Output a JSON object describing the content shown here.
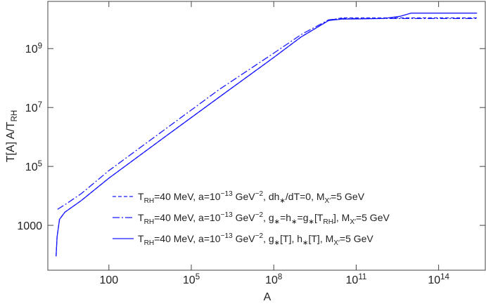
{
  "chart_data": {
    "type": "line",
    "xlabel": "A",
    "ylabel": "T[A] A/T_{RH}",
    "xscale": "log",
    "yscale": "log",
    "xlim": [
      0.6,
      5000000000000000.0
    ],
    "ylim": [
      30,
      40000000000.0
    ],
    "xticks": [
      100,
      {
        "value": 100000,
        "label": "10^{5}"
      },
      {
        "value": 100000000,
        "label": "10^{8}"
      },
      {
        "value": 100000000000,
        "label": "10^{11}"
      },
      {
        "value": 100000000000000,
        "label": "10^{14}"
      }
    ],
    "yticks": [
      1000,
      {
        "value": 100000,
        "label": "10^{5}"
      },
      {
        "value": 10000000,
        "label": "10^{7}"
      },
      {
        "value": 1000000000,
        "label": "10^{9}"
      }
    ],
    "legend": "lower center",
    "series": [
      {
        "name": "T_{RH}=40 MeV,  a=10^{−13} GeV^{−2}, dh_{∗}/dT=0, M_{X′}=5 GeV",
        "color": "#1a1aff",
        "style": "dashed",
        "x": [
          1.2,
          1.3,
          1.6,
          2.5,
          10,
          100,
          10000,
          1000000,
          100000000,
          1000000000,
          10000000000,
          30000000000,
          1000000000000,
          10000000000000,
          2500000000000000
        ],
        "values": [
          89,
          400,
          1600,
          2800,
          7000,
          40000,
          950000,
          22000000,
          500000000,
          2500000000,
          9000000000,
          11000000000,
          11000000000,
          11000000000,
          11000000000
        ]
      },
      {
        "name": "T_{RH}=40 MeV,  a=10^{−13} GeV^{−2}, g_{∗}=h_{∗}=g_{∗}[T_{RH}], M_{X′}=5 GeV",
        "color": "#1a1aff",
        "style": "dashdot",
        "x": [
          1.35,
          2.5,
          10,
          100,
          10000,
          1000000,
          100000000,
          1000000000,
          10000000000,
          30000000000,
          1000000000000,
          10000000000000,
          2500000000000000
        ],
        "values": [
          3500,
          5000,
          12000,
          72000,
          1700000,
          40000000,
          700000000,
          3000000000,
          9500000000,
          10500000000,
          10500000000,
          10500000000,
          10500000000
        ]
      },
      {
        "name": "T_{RH}=40 MeV,  a=10^{−13} GeV^{−2}, g_{∗}[T], h_{∗}[T], M_{X′}=5 GeV",
        "color": "#1a1aff",
        "style": "solid",
        "x": [
          1.2,
          1.3,
          1.6,
          2.5,
          10,
          100,
          10000,
          1000000,
          100000000,
          1000000000,
          10000000000,
          30000000000,
          1000000000000,
          4000000000000,
          10000000000000,
          2500000000000000
        ],
        "values": [
          89,
          400,
          1600,
          2800,
          7000,
          40000,
          950000,
          22000000,
          500000000,
          2500000000,
          9000000000,
          10000000000,
          10500000000,
          12500000000,
          16000000000,
          16000000000
        ]
      }
    ]
  }
}
